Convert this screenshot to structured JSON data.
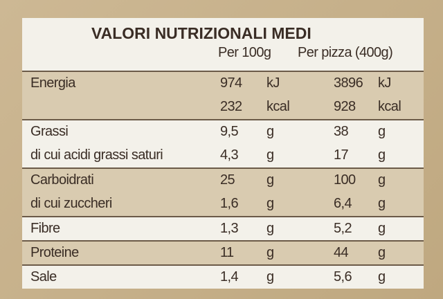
{
  "header": {
    "title": "VALORI NUTRIZIONALI MEDI",
    "col_100": "Per 100g",
    "col_pizza": "Per pizza (400g)"
  },
  "groups": [
    {
      "lines": [
        {
          "label": "Energia",
          "per100": "974",
          "unit100": "kJ",
          "perpizza": "3896",
          "unitpizza": "kJ"
        },
        {
          "per100": "232",
          "unit100": "kcal",
          "perpizza": "928",
          "unitpizza": "kcal"
        }
      ]
    },
    {
      "lines": [
        {
          "label": "Grassi",
          "per100": "9,5",
          "unit100": "g",
          "perpizza": "38",
          "unitpizza": "g"
        },
        {
          "label": "di cui acidi grassi saturi",
          "per100": "4,3",
          "unit100": "g",
          "perpizza": "17",
          "unitpizza": "g"
        }
      ]
    },
    {
      "lines": [
        {
          "label": "Carboidrati",
          "per100": "25",
          "unit100": "g",
          "perpizza": "100",
          "unitpizza": "g"
        },
        {
          "label": "di cui zuccheri",
          "per100": "1,6",
          "unit100": "g",
          "perpizza": "6,4",
          "unitpizza": "g"
        }
      ]
    },
    {
      "lines": [
        {
          "label": "Fibre",
          "per100": "1,3",
          "unit100": "g",
          "perpizza": "5,2",
          "unitpizza": "g"
        }
      ]
    },
    {
      "lines": [
        {
          "label": "Proteine",
          "per100": "11",
          "unit100": "g",
          "perpizza": "44",
          "unitpizza": "g"
        }
      ]
    },
    {
      "lines": [
        {
          "label": "Sale",
          "per100": "1,4",
          "unit100": "g",
          "perpizza": "5,6",
          "unitpizza": "g"
        }
      ]
    }
  ]
}
